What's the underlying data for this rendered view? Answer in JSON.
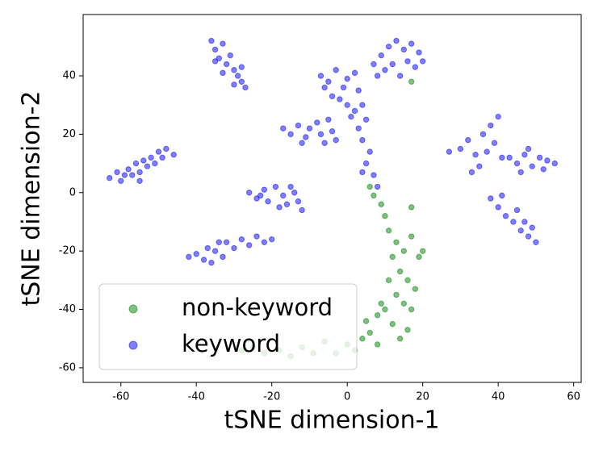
{
  "chart_data": {
    "type": "scatter",
    "xlabel": "tSNE dimension-1",
    "ylabel": "tSNE dimension-2",
    "xlim": [
      -70,
      62
    ],
    "ylim": [
      -65,
      61
    ],
    "xticks": [
      -60,
      -40,
      -20,
      0,
      20,
      40,
      60
    ],
    "yticks": [
      -60,
      -40,
      -20,
      0,
      20,
      40
    ],
    "legend": "lower left",
    "series": [
      {
        "name": "non-keyword",
        "color": "#008000",
        "x": [
          6,
          7,
          9,
          10,
          11,
          13,
          15,
          17,
          19,
          12,
          14,
          16,
          18,
          11,
          13,
          15,
          17,
          10,
          12,
          8,
          6,
          8,
          4,
          2,
          0,
          -3,
          -6,
          -9,
          -12,
          -15,
          -18,
          -22,
          -25,
          -28,
          16,
          14,
          9,
          17,
          20,
          5,
          17
        ],
        "y": [
          2,
          -1,
          -4,
          -8,
          -13,
          -17,
          -20,
          -15,
          -22,
          -22,
          -27,
          -30,
          -33,
          -30,
          -35,
          -38,
          -40,
          -40,
          -45,
          -42,
          -48,
          -52,
          -50,
          -54,
          -52,
          -55,
          -51,
          -55,
          -53,
          -56,
          -54,
          -55,
          -53,
          -54,
          -47,
          -50,
          -38,
          -5,
          -20,
          -44,
          38
        ]
      },
      {
        "name": "keyword",
        "color": "#0000ff",
        "x": [
          -63,
          -61,
          -60,
          -58,
          -57,
          -56,
          -55,
          -54,
          -53,
          -52,
          -51,
          -50,
          -49,
          -48,
          -46,
          -59,
          -55,
          -36,
          -35,
          -33,
          -34,
          -32,
          -31,
          -30,
          -29,
          -28,
          -27,
          -30,
          -33,
          -35,
          -28,
          -42,
          -40,
          -38,
          -37,
          -35,
          -33,
          -32,
          -30,
          -28,
          -26,
          -24,
          -22,
          -20,
          -36,
          -34,
          -26,
          -24,
          -22,
          -21,
          -19,
          -17,
          -16,
          -14,
          -13,
          -12,
          -18,
          -23,
          -15,
          -17,
          -15,
          -13,
          -11,
          -10,
          -8,
          -7,
          -5,
          -4,
          -3,
          -12,
          -6,
          -7,
          -5,
          -3,
          -1,
          0,
          2,
          3,
          -2,
          0,
          2,
          -4,
          -6,
          1,
          7,
          9,
          11,
          13,
          15,
          17,
          19,
          20,
          18,
          16,
          12,
          10,
          14,
          8,
          4,
          5,
          3,
          4,
          6,
          5,
          7,
          4,
          8,
          27,
          30,
          32,
          34,
          36,
          38,
          40,
          39,
          41,
          35,
          33,
          37,
          43,
          45,
          47,
          49,
          51,
          53,
          55,
          48,
          46,
          52,
          38,
          40,
          42,
          44,
          46,
          48,
          50,
          45,
          41,
          47,
          49
        ],
        "y": [
          5,
          7,
          4,
          8,
          6,
          10,
          7,
          11,
          9,
          12,
          10,
          14,
          12,
          15,
          13,
          6,
          4,
          52,
          49,
          51,
          46,
          44,
          47,
          42,
          40,
          38,
          36,
          37,
          41,
          45,
          43,
          -22,
          -21,
          -23,
          -19,
          -20,
          -22,
          -17,
          -19,
          -16,
          -18,
          -15,
          -17,
          -16,
          -24,
          -17,
          0,
          -2,
          1,
          -3,
          2,
          -1,
          -4,
          0,
          -3,
          -6,
          -5,
          -1,
          2,
          22,
          20,
          23,
          19,
          22,
          24,
          20,
          25,
          21,
          18,
          17,
          17,
          40,
          38,
          42,
          36,
          39,
          41,
          35,
          32,
          30,
          28,
          33,
          36,
          26,
          44,
          47,
          50,
          52,
          49,
          51,
          48,
          45,
          43,
          45,
          44,
          42,
          40,
          40,
          30,
          25,
          22,
          18,
          14,
          10,
          6,
          7,
          2,
          14,
          15,
          18,
          13,
          20,
          23,
          26,
          17,
          12,
          9,
          7,
          14,
          12,
          10,
          13,
          9,
          12,
          11,
          10,
          15,
          7,
          8,
          -2,
          -5,
          -8,
          -10,
          -13,
          -15,
          -17,
          -6,
          -1,
          -10,
          -12
        ]
      }
    ]
  }
}
